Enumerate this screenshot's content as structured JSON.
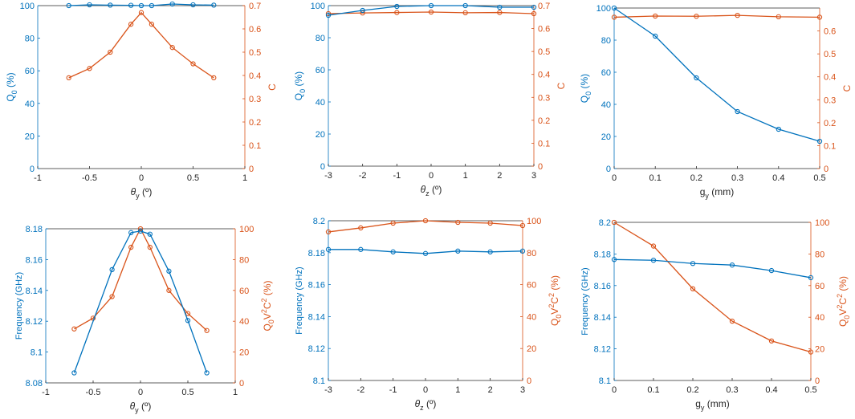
{
  "colors": {
    "left": "#0072BD",
    "right": "#D95319",
    "axis": "#262626"
  },
  "chart_data": [
    {
      "type": "line",
      "x": [
        -0.7,
        -0.5,
        -0.3,
        -0.1,
        0,
        0.1,
        0.3,
        0.5,
        0.7
      ],
      "xlim": [
        -1,
        1
      ],
      "xticks": [
        "-1",
        "-0.5",
        "0",
        "0.5",
        "1"
      ],
      "xlabel": "θy (º)",
      "left": {
        "label": "Q0 (%)",
        "ylim": [
          0,
          100
        ],
        "ticks": [
          "0",
          "20",
          "40",
          "60",
          "80",
          "100"
        ],
        "values": [
          100,
          100.5,
          100.3,
          100.2,
          100,
          100,
          101,
          100.5,
          100.3
        ]
      },
      "right": {
        "label": "C",
        "ylim": [
          0,
          0.7
        ],
        "ticks": [
          "0",
          "0.1",
          "0.2",
          "0.3",
          "0.4",
          "0.5",
          "0.6",
          "0.7"
        ],
        "values": [
          0.39,
          0.43,
          0.5,
          0.62,
          0.67,
          0.62,
          0.52,
          0.45,
          0.39
        ]
      }
    },
    {
      "type": "line",
      "x": [
        -3,
        -2,
        -1,
        0,
        1,
        2,
        3
      ],
      "xlim": [
        -3,
        3
      ],
      "xticks": [
        "-3",
        "-2",
        "-1",
        "0",
        "1",
        "2",
        "3"
      ],
      "xlabel": "θz (º)",
      "left": {
        "label": "Q0 (%)",
        "ylim": [
          0,
          100
        ],
        "ticks": [
          "0",
          "20",
          "40",
          "60",
          "80",
          "100"
        ],
        "values": [
          94,
          97,
          99.5,
          100,
          100,
          99,
          99
        ]
      },
      "right": {
        "label": "C",
        "ylim": [
          0,
          0.7
        ],
        "ticks": [
          "0",
          "0.1",
          "0.2",
          "0.3",
          "0.4",
          "0.5",
          "0.6",
          "0.7"
        ],
        "values": [
          0.665,
          0.668,
          0.67,
          0.672,
          0.669,
          0.67,
          0.665
        ]
      }
    },
    {
      "type": "line",
      "x": [
        0,
        0.1,
        0.2,
        0.3,
        0.4,
        0.5
      ],
      "xlim": [
        0,
        0.5
      ],
      "xticks": [
        "0",
        "0.1",
        "0.2",
        "0.3",
        "0.4",
        "0.5"
      ],
      "xlabel": "gy (mm)",
      "left": {
        "label": "Q0 (%)",
        "ylim": [
          0,
          100
        ],
        "ticks": [
          "0",
          "20",
          "40",
          "60",
          "80",
          "100"
        ],
        "values": [
          100,
          82.5,
          56.5,
          35.5,
          24.5,
          17
        ]
      },
      "right": {
        "label": "C",
        "ylim": [
          0,
          0.7
        ],
        "ticks": [
          "0",
          "0.1",
          "0.2",
          "0.3",
          "0.4",
          "0.5",
          "0.6"
        ],
        "values": [
          0.66,
          0.665,
          0.664,
          0.668,
          0.662,
          0.66
        ]
      }
    },
    {
      "type": "line",
      "x": [
        -0.7,
        -0.3,
        -0.1,
        0,
        0.1,
        0.3,
        0.5,
        0.7
      ],
      "xlim": [
        -1,
        1
      ],
      "xticks": [
        "-1",
        "-0.5",
        "0",
        "0.5",
        "1"
      ],
      "xlabel": "θy (º)",
      "left": {
        "label": "Frequency (GHz)",
        "ylim": [
          8.08,
          8.18
        ],
        "ticks": [
          "8.08",
          "8.1",
          "8.12",
          "8.14",
          "8.16",
          "8.18"
        ],
        "values": [
          8.0865,
          8.1535,
          8.1775,
          8.1785,
          8.1765,
          8.1525,
          8.1205,
          8.0865
        ]
      },
      "right": {
        "label": "Q0V2C2 (%)",
        "ylim": [
          0,
          100
        ],
        "ticks": [
          "0",
          "20",
          "40",
          "60",
          "80",
          "100"
        ],
        "x": [
          -0.7,
          -0.5,
          -0.3,
          -0.1,
          0,
          0.1,
          0.3,
          0.5,
          0.7
        ],
        "values": [
          35,
          42,
          56,
          88,
          100,
          88,
          60,
          45,
          34
        ]
      }
    },
    {
      "type": "line",
      "x": [
        -3,
        -2,
        -1,
        0,
        1,
        2,
        3
      ],
      "xlim": [
        -3,
        3
      ],
      "xticks": [
        "-3",
        "-2",
        "-1",
        "0",
        "1",
        "2",
        "3"
      ],
      "xlabel": "θz (º)",
      "left": {
        "label": "Frequency (GHz)",
        "ylim": [
          8.1,
          8.2
        ],
        "ticks": [
          "8.1",
          "8.12",
          "8.14",
          "8.16",
          "8.18",
          "8.2"
        ],
        "values": [
          8.182,
          8.182,
          8.1805,
          8.1795,
          8.181,
          8.1805,
          8.181
        ]
      },
      "right": {
        "label": "Q0V2C2 (%)",
        "ylim": [
          0,
          100
        ],
        "ticks": [
          "0",
          "20",
          "40",
          "60",
          "80",
          "100"
        ],
        "values": [
          93,
          95.5,
          98.5,
          100,
          99,
          98.5,
          97
        ]
      }
    },
    {
      "type": "line",
      "x": [
        0,
        0.1,
        0.2,
        0.3,
        0.4,
        0.5
      ],
      "xlim": [
        0,
        0.5
      ],
      "xticks": [
        "0",
        "0.1",
        "0.2",
        "0.3",
        "0.4",
        "0.5"
      ],
      "xlabel": "gy (mm)",
      "left": {
        "label": "Frequency (GHz)",
        "ylim": [
          8.1,
          8.2
        ],
        "ticks": [
          "8.1",
          "8.12",
          "8.14",
          "8.16",
          "8.18",
          "8.2"
        ],
        "values": [
          8.1765,
          8.176,
          8.174,
          8.173,
          8.1695,
          8.165
        ]
      },
      "right": {
        "label": "Q0V2C2 (%)",
        "ylim": [
          0,
          100
        ],
        "ticks": [
          "0",
          "20",
          "40",
          "60",
          "80",
          "100"
        ],
        "values": [
          100,
          85,
          58,
          37.5,
          25,
          18
        ]
      }
    }
  ]
}
